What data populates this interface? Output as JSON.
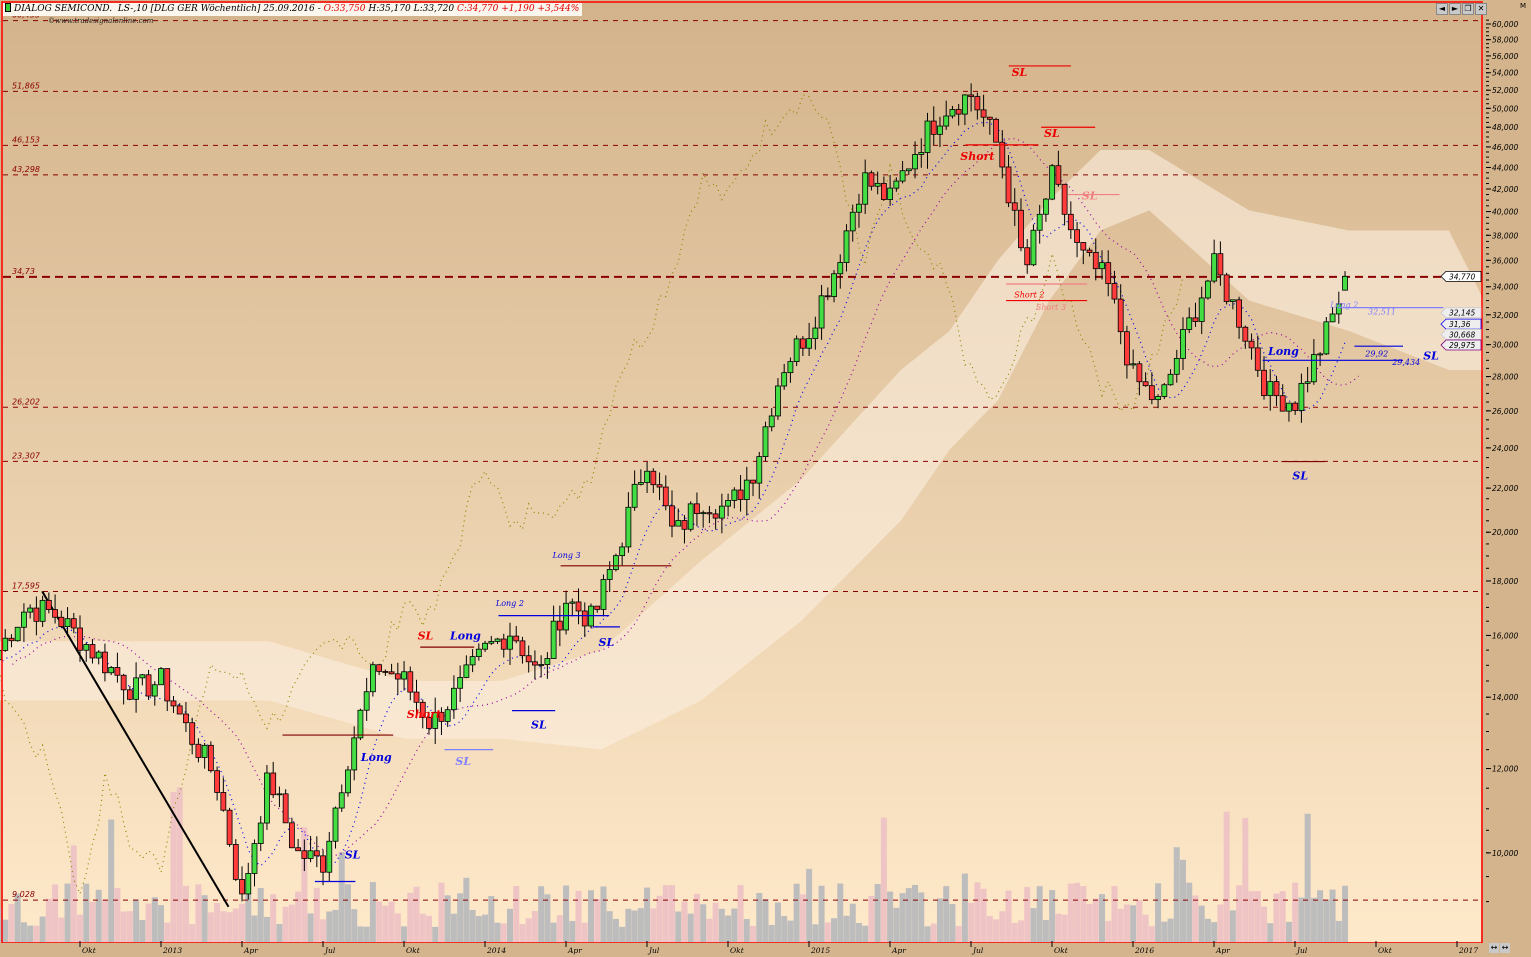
{
  "header": {
    "symbol": "DIALOG SEMICOND.",
    "details": "LS-,10 [DLG GER  Wöchentlich] 25.09.2016 -",
    "open": "O:33,750",
    "high": "H:35,170",
    "low": "L:33,720",
    "close_change": "C:34,770 +1,190 +3,544%",
    "watermark": "©www.tradesignalonline.com",
    "corner_label": "M"
  },
  "window_buttons": [
    {
      "name": "back-icon",
      "glyph": "◄"
    },
    {
      "name": "forward-icon",
      "glyph": "►"
    },
    {
      "name": "restore-icon",
      "glyph": "❐"
    },
    {
      "name": "close-icon",
      "glyph": "✕"
    }
  ],
  "pan_buttons": [
    {
      "name": "expand-icon",
      "glyph": "↔"
    },
    {
      "name": "shrink-icon",
      "glyph": "↔"
    }
  ],
  "colors": {
    "bg_top": "#d3b38b",
    "bg_bottom": "#fee9ca",
    "up": "#44dd44",
    "down": "#ff3b3b",
    "frame": "#ff0000",
    "level": "#8b0000",
    "cloud": "#fbefe0",
    "volume_grey": "#bdbdbd",
    "volume_pink": "#efc4c4",
    "chikou": "#8a8a00",
    "kijun": "#0000ee",
    "tenkan": "#9a00a0",
    "long": "#0000dd",
    "short": "#ee0000"
  },
  "chart_data": {
    "type": "candlestick",
    "scale": "log",
    "ylim": [
      8.5,
      62
    ],
    "y_ticks": [
      "10,000",
      "12,000",
      "14,000",
      "16,000",
      "18,000",
      "20,000",
      "22,000",
      "24,000",
      "26,000",
      "28,000",
      "30,000",
      "32,000",
      "34,000",
      "36,000",
      "38,000",
      "40,000",
      "42,000",
      "44,000",
      "46,000",
      "48,000",
      "50,000",
      "52,000",
      "54,000",
      "56,000",
      "58,000",
      "60,000"
    ],
    "x_ticks": [
      {
        "label": "Okt",
        "month": 0
      },
      {
        "label": "2013",
        "month": 3
      },
      {
        "label": "Apr",
        "month": 6
      },
      {
        "label": "Jul",
        "month": 9
      },
      {
        "label": "Okt",
        "month": 12
      },
      {
        "label": "2014",
        "month": 15
      },
      {
        "label": "Apr",
        "month": 18
      },
      {
        "label": "Jul",
        "month": 21
      },
      {
        "label": "Okt",
        "month": 24
      },
      {
        "label": "2015",
        "month": 27
      },
      {
        "label": "Apr",
        "month": 30
      },
      {
        "label": "Jul",
        "month": 33
      },
      {
        "label": "Okt",
        "month": 36
      },
      {
        "label": "2016",
        "month": 39
      },
      {
        "label": "Apr",
        "month": 42
      },
      {
        "label": "Jul",
        "month": 45
      },
      {
        "label": "Okt",
        "month": 48
      },
      {
        "label": "2017",
        "month": 51
      }
    ],
    "monthly_close": {
      "start": "2012-07",
      "values": [
        15.5,
        17.0,
        16.8,
        15.9,
        15.0,
        14.2,
        14.5,
        13.0,
        11.8,
        9.0,
        11.8,
        10.0,
        9.8,
        12.5,
        15.0,
        14.5,
        13.2,
        14.2,
        15.5,
        16.2,
        14.6,
        17.3,
        16.5,
        19.5,
        23.5,
        19.8,
        21.5,
        21.0,
        23.0,
        28.5,
        31.0,
        35.5,
        43.0,
        41.0,
        46.0,
        50.0,
        51.5,
        46.0,
        35.0,
        43.0,
        36.5,
        34.5,
        28.0,
        26.3,
        31.0,
        35.5,
        31.5,
        27.0,
        26.5,
        30.0,
        34.77
      ]
    },
    "last_bar": {
      "date": "25.09.2016",
      "open": 33.75,
      "high": 35.17,
      "low": 33.72,
      "close": 34.77,
      "change": 1.19,
      "change_pct": 3.544
    },
    "levels": [
      {
        "label": "60,433",
        "value": 60.433
      },
      {
        "label": "51,865",
        "value": 51.865
      },
      {
        "label": "46,153",
        "value": 46.153
      },
      {
        "label": "43,298",
        "value": 43.298
      },
      {
        "label": "34,73",
        "value": 34.73,
        "bold": true
      },
      {
        "label": "26,202",
        "value": 26.202
      },
      {
        "label": "23,307",
        "value": 23.307
      },
      {
        "label": "17,595",
        "value": 17.595
      },
      {
        "label": "9,028",
        "value": 9.028
      }
    ],
    "price_tags": [
      {
        "label": "34,770",
        "value": 34.77,
        "border": "#000000",
        "bg": "#ffffff"
      },
      {
        "label": "32,145",
        "value": 32.145,
        "border": "#cccccc",
        "bg": "#eeeeee"
      },
      {
        "label": "31,36",
        "value": 31.36,
        "border": "#0000ff",
        "bg": "#eeeeee"
      },
      {
        "label": "30,668",
        "value": 30.668,
        "border": "#cccccc",
        "bg": "#eeeeee"
      },
      {
        "label": "29,975",
        "value": 29.975,
        "border": "#800080",
        "bg": "#eeeeee"
      }
    ],
    "cloud": {
      "upper": [
        [
          -3,
          15.8
        ],
        [
          7,
          15.8
        ],
        [
          12,
          14.5
        ],
        [
          15.6,
          14.5
        ],
        [
          19.3,
          15.5
        ],
        [
          23,
          18.8
        ],
        [
          26.7,
          22.4
        ],
        [
          30.4,
          28.4
        ],
        [
          32.2,
          30.9
        ],
        [
          34,
          36
        ],
        [
          35.9,
          41
        ],
        [
          37.8,
          45.7
        ],
        [
          39.6,
          45.7
        ],
        [
          43.3,
          40.1
        ],
        [
          47,
          38.4
        ],
        [
          50.7,
          38.4
        ],
        [
          52,
          33
        ]
      ],
      "lower": [
        [
          -3,
          13.9
        ],
        [
          7,
          13.9
        ],
        [
          12,
          12.8
        ],
        [
          15.6,
          12.8
        ],
        [
          19.3,
          12.5
        ],
        [
          23,
          13.9
        ],
        [
          26.7,
          16.5
        ],
        [
          30.4,
          20.5
        ],
        [
          32.2,
          23.9
        ],
        [
          34,
          26.6
        ],
        [
          35.9,
          33
        ],
        [
          37.8,
          38.4
        ],
        [
          39.6,
          40.1
        ],
        [
          43.3,
          33
        ],
        [
          47,
          30.9
        ],
        [
          50.7,
          28.4
        ],
        [
          52,
          28.4
        ]
      ]
    },
    "trendline": [
      [
        -1.4,
        17.6
      ],
      [
        5.5,
        8.9
      ]
    ],
    "annotations": [
      {
        "text": "SL",
        "month": 34.8,
        "price": 54.1,
        "color": "#ee0000"
      },
      {
        "text": "SL",
        "month": 36,
        "price": 47.4,
        "color": "#ee0000"
      },
      {
        "text": "Short",
        "month": 32.9,
        "price": 45.1,
        "color": "#ee0000"
      },
      {
        "text": "SL",
        "month": 37.4,
        "price": 41.4,
        "color": "#f08080"
      },
      {
        "text": "Short 2",
        "month": 34.9,
        "price": 33.5,
        "color": "#ee0000"
      },
      {
        "text": "Short 3",
        "month": 35.7,
        "price": 32.6,
        "color": "#f08080"
      },
      {
        "text": "Long 2",
        "month": 46.6,
        "price": 32.8,
        "color": "#8080ff"
      },
      {
        "text": "32,511",
        "month": 48,
        "price": 32.3,
        "color": "#8080ff"
      },
      {
        "text": "Long",
        "month": 44.3,
        "price": 29.6,
        "color": "#0000dd"
      },
      {
        "text": "29,92",
        "month": 47.9,
        "price": 29.5,
        "color": "#0000dd"
      },
      {
        "text": "29,434",
        "month": 48,
        "price": 28.95,
        "color": "#0000dd"
      },
      {
        "text": "SL",
        "month": 48.9,
        "price": 29.3,
        "color": "#0000dd"
      },
      {
        "text": "SL",
        "month": 45.2,
        "price": 22.6,
        "color": "#0000dd"
      },
      {
        "text": "Long 3",
        "month": 17.8,
        "price": 19.07,
        "color": "#0000dd"
      },
      {
        "text": "Long 2",
        "month": 15.7,
        "price": 17.2,
        "color": "#0000dd"
      },
      {
        "text": "SL",
        "month": 12.8,
        "price": 16.0,
        "color": "#ee0000"
      },
      {
        "text": "Long",
        "month": 14,
        "price": 16.0,
        "color": "#0000dd"
      },
      {
        "text": "SL",
        "month": 19.5,
        "price": 15.77,
        "color": "#0000dd"
      },
      {
        "text": "Short",
        "month": 12.4,
        "price": 13.5,
        "color": "#ee0000"
      },
      {
        "text": "SL",
        "month": 17,
        "price": 13.2,
        "color": "#0000dd"
      },
      {
        "text": "SL",
        "month": 14.2,
        "price": 12.2,
        "color": "#8080ff"
      },
      {
        "text": "Long",
        "month": 10.7,
        "price": 12.3,
        "color": "#0000dd"
      },
      {
        "text": "SL",
        "month": 10.1,
        "price": 9.97,
        "color": "#0000dd"
      }
    ],
    "signal_lines": [
      {
        "from": [
          34.4,
          54.8
        ],
        "to": [
          36.7,
          54.8
        ],
        "color": "#ee0000"
      },
      {
        "from": [
          35.6,
          48.0
        ],
        "to": [
          37.6,
          48.0
        ],
        "color": "#ee0000"
      },
      {
        "from": [
          32.8,
          46.2
        ],
        "to": [
          35.5,
          46.2
        ],
        "color": "#ee0000"
      },
      {
        "from": [
          36.6,
          41.5
        ],
        "to": [
          38.5,
          41.5
        ],
        "color": "#f08080"
      },
      {
        "from": [
          34.3,
          34.2
        ],
        "to": [
          37.3,
          34.2
        ],
        "color": "#f08080"
      },
      {
        "from": [
          34.3,
          33.0
        ],
        "to": [
          37.3,
          33.0
        ],
        "color": "#ee0000"
      },
      {
        "from": [
          46.6,
          32.5
        ],
        "to": [
          50.5,
          32.5
        ],
        "color": "#8080ff"
      },
      {
        "from": [
          43.8,
          29.0
        ],
        "to": [
          49.0,
          29.0
        ],
        "color": "#0000dd"
      },
      {
        "from": [
          47.2,
          29.9
        ],
        "to": [
          49.0,
          29.9
        ],
        "color": "#0000dd"
      },
      {
        "from": [
          44.5,
          23.3
        ],
        "to": [
          46.1,
          23.3
        ],
        "color": "#800000"
      },
      {
        "from": [
          17.8,
          18.6
        ],
        "to": [
          21.9,
          18.6
        ],
        "color": "#800000"
      },
      {
        "from": [
          15.5,
          16.7
        ],
        "to": [
          19.6,
          16.7
        ],
        "color": "#0000dd"
      },
      {
        "from": [
          19.0,
          16.3
        ],
        "to": [
          20.0,
          16.3
        ],
        "color": "#0000dd"
      },
      {
        "from": [
          12.6,
          15.6
        ],
        "to": [
          14.6,
          15.6
        ],
        "color": "#800000"
      },
      {
        "from": [
          16.0,
          13.6
        ],
        "to": [
          17.6,
          13.6
        ],
        "color": "#0000dd"
      },
      {
        "from": [
          13.5,
          12.5
        ],
        "to": [
          15.3,
          12.5
        ],
        "color": "#8080ff"
      },
      {
        "from": [
          7.5,
          12.9
        ],
        "to": [
          11.6,
          12.9
        ],
        "color": "#800000"
      },
      {
        "from": [
          8.7,
          9.4
        ],
        "to": [
          10.2,
          9.4
        ],
        "color": "#0000dd"
      }
    ]
  }
}
